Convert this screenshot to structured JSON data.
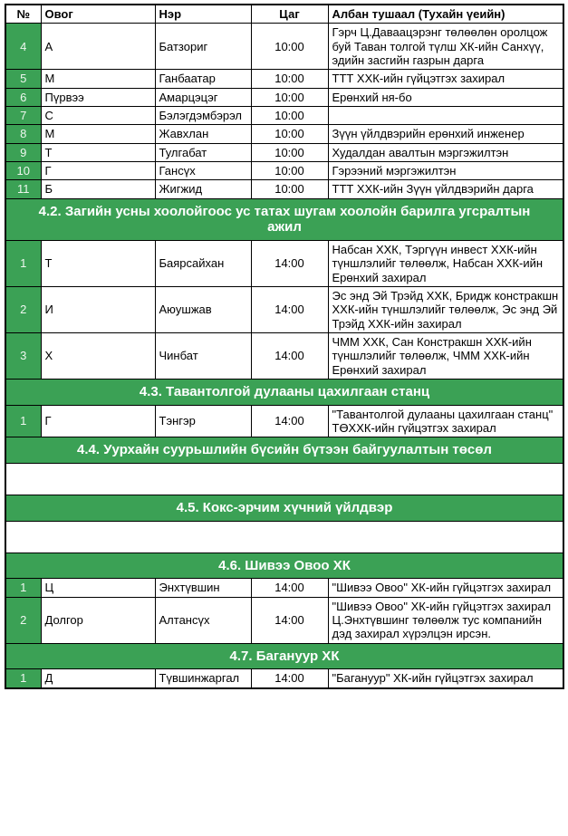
{
  "colors": {
    "green": "#3ba155",
    "band_text": "#ffffff",
    "number_text": "#eef7ef",
    "border": "#000000"
  },
  "table": {
    "columns": [
      "№",
      "Овог",
      "Нэр",
      "Цаг",
      "Албан тушаал (Тухайн үеийн)"
    ],
    "blocks": [
      {
        "kind": "rows",
        "rows": [
          {
            "no": "4",
            "ovog": "А",
            "ner": "Батзориг",
            "tsag": "10:00",
            "pos": "Гэрч Ц.Даваацэрэнг төлөөлөн оролцож буй Таван толгой түлш ХК-ийн Санхүү, эдийн засгийн газрын дарга"
          },
          {
            "no": "5",
            "ovog": "М",
            "ner": "Ганбаатар",
            "tsag": "10:00",
            "pos": "ТТТ ХХК-ийн гүйцэтгэх захирал"
          },
          {
            "no": "6",
            "ovog": "Пүрвээ",
            "ner": "Амарцэцэг",
            "tsag": "10:00",
            "pos": "Ерөнхий ня-бо"
          },
          {
            "no": "7",
            "ovog": "С",
            "ner": "Бэлэгдэмбэрэл",
            "tsag": "10:00",
            "pos": ""
          },
          {
            "no": "8",
            "ovog": "М",
            "ner": "Жавхлан",
            "tsag": "10:00",
            "pos": "Зүүн үйлдвэрийн ерөнхий инженер"
          },
          {
            "no": "9",
            "ovog": "Т",
            "ner": "Тулгабат",
            "tsag": "10:00",
            "pos": "Худалдан авалтын мэргэжилтэн"
          },
          {
            "no": "10",
            "ovog": "Г",
            "ner": "Гансүх",
            "tsag": "10:00",
            "pos": "Гэрээний мэргэжилтэн"
          },
          {
            "no": "11",
            "ovog": "Б",
            "ner": "Жигжид",
            "tsag": "10:00",
            "pos": "ТТТ ХХК-ийн Зүүн үйлдвэрийн дарга"
          }
        ]
      },
      {
        "kind": "section",
        "title": "4.2. Загийн усны хоолойгоос ус татах шугам хоолойн барилга угсралтын ажил"
      },
      {
        "kind": "rows",
        "rows": [
          {
            "no": "1",
            "ovog": "Т",
            "ner": "Баярсайхан",
            "tsag": "14:00",
            "pos": "Набсан ХХК, Тэргүүн инвест ХХК-ийн түншлэлийг төлөөлж, Набсан ХХК-ийн Ерөнхий захирал"
          },
          {
            "no": "2",
            "ovog": "И",
            "ner": "Аюушжав",
            "tsag": "14:00",
            "pos": "Эс энд Эй Трэйд ХХК, Бридж констракшн ХХК-ийн түншлэлийг төлөөлж, Эс энд Эй Трэйд ХХК-ийн захирал"
          },
          {
            "no": "3",
            "ovog": "Х",
            "ner": "Чинбат",
            "tsag": "14:00",
            "pos": "ЧММ ХХК, Сан Констракшн ХХК-ийн түншлэлийг төлөөлж, ЧММ ХХК-ийн Ерөнхий захирал"
          }
        ]
      },
      {
        "kind": "section",
        "title": "4.3. Тавантолгой дулааны цахилгаан станц"
      },
      {
        "kind": "rows",
        "rows": [
          {
            "no": "1",
            "ovog": "Г",
            "ner": "Тэнгэр",
            "tsag": "14:00",
            "pos": "\"Тавантолгой дулааны цахилгаан станц\" ТӨХХК-ийн гүйцэтгэх захирал"
          }
        ]
      },
      {
        "kind": "section",
        "title": "4.4. Уурхайн суурьшлийн бүсийн бүтээн байгуулалтын төсөл"
      },
      {
        "kind": "empty"
      },
      {
        "kind": "section",
        "title": "4.5. Кокс-эрчим хүчний үйлдвэр"
      },
      {
        "kind": "empty"
      },
      {
        "kind": "section",
        "title": "4.6. Шивээ Овоо ХК"
      },
      {
        "kind": "rows",
        "rows": [
          {
            "no": "1",
            "ovog": "Ц",
            "ner": "Энхтүвшин",
            "tsag": "14:00",
            "pos": "\"Шивээ Овоо\" ХК-ийн гүйцэтгэх захирал"
          },
          {
            "no": "2",
            "ovog": "Долгор",
            "ner": "Алтансүх",
            "tsag": "14:00",
            "pos": "\"Шивээ Овоо\" ХК-ийн гүйцэтгэх захирал Ц.Энхтүвшинг төлөөлж тус компанийн дэд захирал хүрэлцэн ирсэн."
          }
        ]
      },
      {
        "kind": "section",
        "title": "4.7. Багануур ХК"
      },
      {
        "kind": "rows",
        "rows": [
          {
            "no": "1",
            "ovog": "Д",
            "ner": "Түвшинжаргал",
            "tsag": "14:00",
            "pos": "\"Багануур\" ХК-ийн гүйцэтгэх захирал"
          }
        ]
      }
    ]
  }
}
